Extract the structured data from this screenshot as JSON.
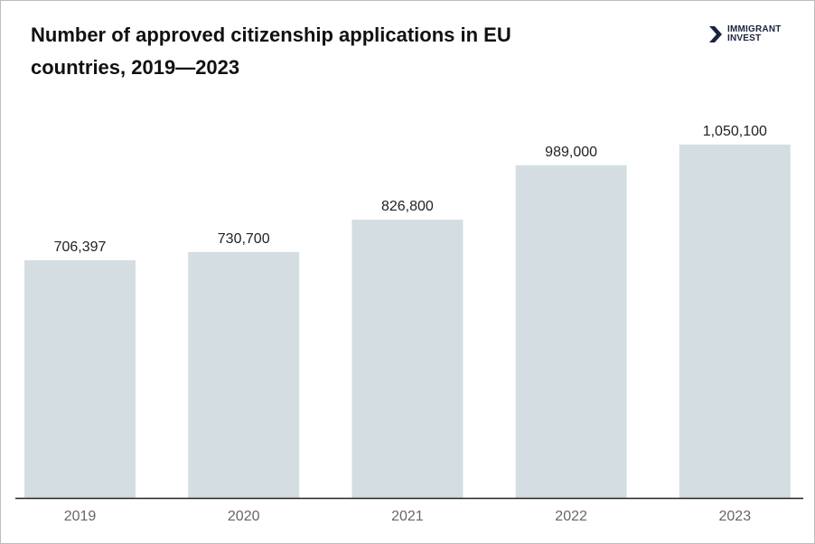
{
  "brand": {
    "line1": "IMMIGRANT",
    "line2": "INVEST",
    "color": "#1b2340"
  },
  "chart_data": {
    "type": "bar",
    "title": "Number of approved citizenship applications in EU countries, 2019—2023",
    "categories": [
      "2019",
      "2020",
      "2021",
      "2022",
      "2023"
    ],
    "values": [
      706397,
      730700,
      826800,
      989000,
      1050100
    ],
    "value_labels": [
      "706,397",
      "730,700",
      "826,800",
      "989,000",
      "1,050,100"
    ],
    "xlabel": "",
    "ylabel": "",
    "ylim": [
      0,
      1200000
    ],
    "grid": false,
    "bar_color": "#d4dee2",
    "axis_color": "#222222"
  }
}
